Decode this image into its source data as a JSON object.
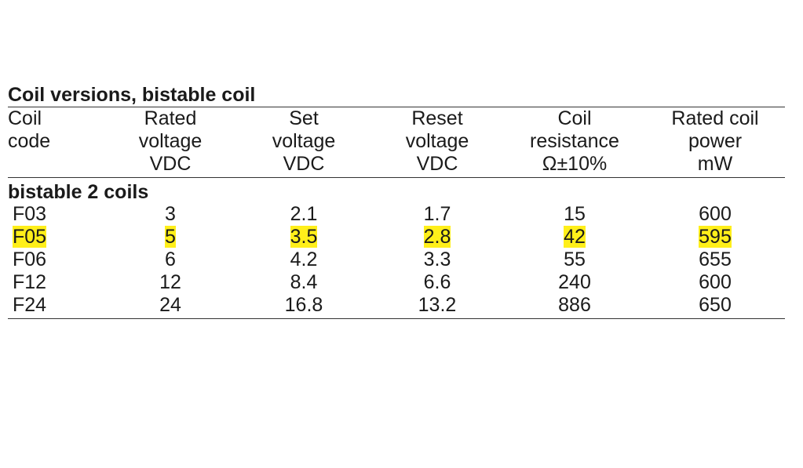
{
  "title": "Coil versions, bistable coil",
  "headers": [
    [
      "Coil",
      "code",
      ""
    ],
    [
      "Rated",
      "voltage",
      "VDC"
    ],
    [
      "Set",
      "voltage",
      "VDC"
    ],
    [
      "Reset",
      "voltage",
      "VDC"
    ],
    [
      "Coil",
      "resistance",
      "Ω±10%"
    ],
    [
      "Rated coil",
      "power",
      "mW"
    ]
  ],
  "group_label": "bistable 2 coils",
  "rows": [
    [
      "F03",
      "3",
      "2.1",
      "1.7",
      "15",
      "600"
    ],
    [
      "F05",
      "5",
      "3.5",
      "2.8",
      "42",
      "595"
    ],
    [
      "F06",
      "6",
      "4.2",
      "3.3",
      "55",
      "655"
    ],
    [
      "F12",
      "12",
      "8.4",
      "6.6",
      "240",
      "600"
    ],
    [
      "F24",
      "24",
      "16.8",
      "13.2",
      "886",
      "650"
    ]
  ],
  "highlighted_row": "F05",
  "highlight_color": "#ffef1a"
}
